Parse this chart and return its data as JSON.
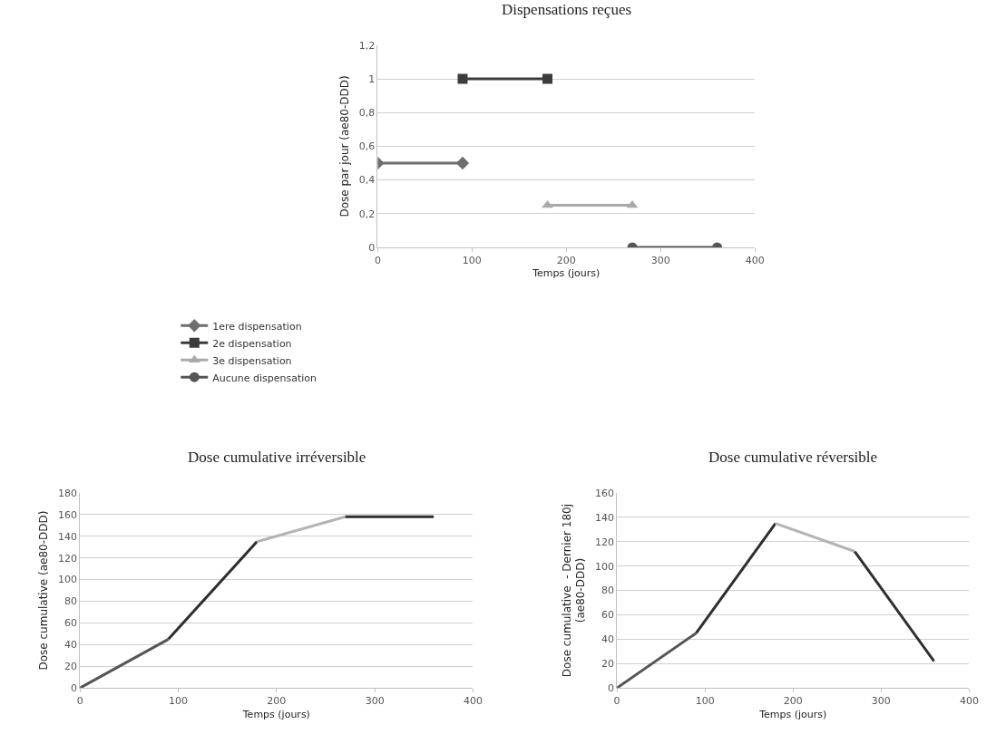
{
  "chart_data": [
    {
      "type": "line",
      "title": "Dispensations reçues",
      "xlabel": "Temps (jours)",
      "ylabel": "Dose par jour (ae80-DDD)",
      "xlim": [
        0,
        400
      ],
      "xticks": [
        0,
        100,
        200,
        300,
        400
      ],
      "ylim": [
        0,
        1.2
      ],
      "yticks": [
        0,
        {
          "value": 0.2,
          "label": "0,2"
        },
        {
          "value": 0.4,
          "label": "0,4"
        },
        {
          "value": 0.6,
          "label": "0,6"
        },
        {
          "value": 0.8,
          "label": "0,8"
        },
        1,
        {
          "value": 1.2,
          "label": "1,2"
        }
      ],
      "grid": "y",
      "legend": "bottom",
      "series": [
        {
          "name": "1ere dispensation",
          "color": "#6e6e6e",
          "marker": "diamond",
          "x": [
            0,
            90
          ],
          "values": [
            0.5,
            0.5
          ]
        },
        {
          "name": "2e dispensation",
          "color": "#3c3c3c",
          "marker": "square",
          "x": [
            90,
            180
          ],
          "values": [
            1,
            1
          ]
        },
        {
          "name": "3e dispensation",
          "color": "#aaaaaa",
          "marker": "triangle",
          "x": [
            180,
            270
          ],
          "values": [
            0.25,
            0.25
          ]
        },
        {
          "name": "Aucune dispensation",
          "color": "#555555",
          "marker": "circle",
          "x": [
            270,
            360
          ],
          "values": [
            0,
            0
          ]
        }
      ]
    },
    {
      "type": "line",
      "title": "Dose cumulative irréversible",
      "xlabel": "Temps (jours)",
      "ylabel": "Dose cumulative (ae80-DDD)",
      "xlim": [
        0,
        400
      ],
      "xticks": [
        0,
        100,
        200,
        300,
        400
      ],
      "ylim": [
        0,
        180
      ],
      "yticks": [
        0,
        20,
        40,
        60,
        80,
        100,
        120,
        140,
        160,
        180
      ],
      "grid": "y",
      "marker": "none",
      "series": [
        {
          "color": "#555555",
          "x": [
            0,
            90
          ],
          "values": [
            0,
            45
          ]
        },
        {
          "color": "#2e2e2e",
          "x": [
            90,
            180
          ],
          "values": [
            45,
            135
          ]
        },
        {
          "color": "#b4b4b4",
          "x": [
            180,
            270
          ],
          "values": [
            135,
            158
          ]
        },
        {
          "color": "#2e2e2e",
          "x": [
            270,
            360
          ],
          "values": [
            158,
            158
          ]
        }
      ]
    },
    {
      "type": "line",
      "title": "Dose cumulative réversible",
      "xlabel": "Temps (jours)",
      "ylabel": "Dose cumulative  - Dernier 180j\n(ae80-DDD)",
      "xlim": [
        0,
        400
      ],
      "xticks": [
        0,
        100,
        200,
        300,
        400
      ],
      "ylim": [
        0,
        160
      ],
      "yticks": [
        0,
        20,
        40,
        60,
        80,
        100,
        120,
        140,
        160
      ],
      "grid": "y",
      "marker": "none",
      "series": [
        {
          "color": "#555555",
          "x": [
            0,
            90
          ],
          "values": [
            0,
            45
          ]
        },
        {
          "color": "#2e2e2e",
          "x": [
            90,
            180
          ],
          "values": [
            45,
            135
          ]
        },
        {
          "color": "#b4b4b4",
          "x": [
            180,
            270
          ],
          "values": [
            135,
            112
          ]
        },
        {
          "color": "#2e2e2e",
          "x": [
            270,
            360
          ],
          "values": [
            112,
            22
          ]
        }
      ]
    }
  ]
}
